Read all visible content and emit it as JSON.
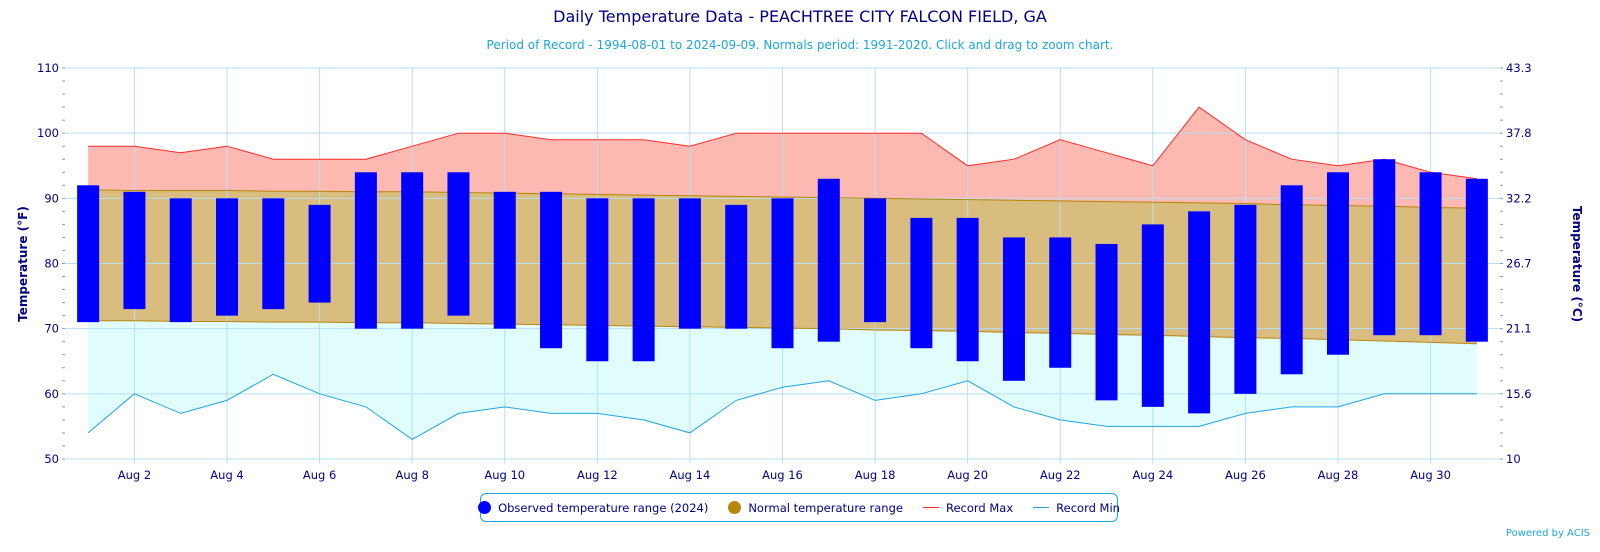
{
  "title": "Daily Temperature Data - PEACHTREE CITY FALCON FIELD, GA",
  "subtitle": "Period of Record - 1994-08-01 to 2024-09-09. Normals period: 1991-2020. Click and drag to zoom chart.",
  "credit": "Powered by ACIS",
  "colors": {
    "observed": "#0000ff",
    "normal_fill": "#d9bd7e",
    "normal_line": "#b8860b",
    "record_max_line": "#ff2a2a",
    "record_max_fill": "#fbb9b2",
    "record_min_line": "#1ea5dd",
    "record_min_fill": "#e0fcfc",
    "grid": "#b7dff2",
    "axis_text": "#000080"
  },
  "legend": {
    "observed": "Observed temperature range (2024)",
    "normal": "Normal temperature range",
    "record_max": "Record Max",
    "record_min": "Record Min",
    "observed_icon": "circle-marker",
    "normal_icon": "circle-marker",
    "record_max_icon": "line-marker",
    "record_min_icon": "line-marker"
  },
  "chart_data": {
    "type": "bar",
    "title": "Daily Temperature Data - PEACHTREE CITY FALCON FIELD, GA",
    "xlabel": "",
    "ylabel": "Temperature (°F)",
    "ylabel_right": "Temperature (°C)",
    "ylim": [
      50,
      110
    ],
    "yticks": [
      50,
      60,
      70,
      80,
      90,
      100,
      110
    ],
    "yticks_right": [
      "10",
      "15.6",
      "21.1",
      "26.7",
      "32.2",
      "37.8",
      "43.3"
    ],
    "xlim": [
      0.5,
      31.5
    ],
    "xticks": [
      2,
      4,
      6,
      8,
      10,
      12,
      14,
      16,
      18,
      20,
      22,
      24,
      26,
      28,
      30
    ],
    "xtick_labels": [
      "Aug 2",
      "Aug 4",
      "Aug 6",
      "Aug 8",
      "Aug 10",
      "Aug 12",
      "Aug 14",
      "Aug 16",
      "Aug 18",
      "Aug 20",
      "Aug 22",
      "Aug 24",
      "Aug 26",
      "Aug 28",
      "Aug 30"
    ],
    "grid": true,
    "legend_position": "bottom-center",
    "days": [
      1,
      2,
      3,
      4,
      5,
      6,
      7,
      8,
      9,
      10,
      11,
      12,
      13,
      14,
      15,
      16,
      17,
      18,
      19,
      20,
      21,
      22,
      23,
      24,
      25,
      26,
      27,
      28,
      29,
      30,
      31
    ],
    "series": [
      {
        "name": "Observed temperature range (2024)",
        "low": [
          71,
          73,
          71,
          72,
          73,
          74,
          70,
          70,
          72,
          70,
          67,
          65,
          65,
          70,
          70,
          67,
          68,
          71,
          67,
          65,
          62,
          64,
          59,
          58,
          57,
          60,
          63,
          66,
          69,
          69,
          68
        ],
        "high": [
          92,
          91,
          90,
          90,
          90,
          89,
          94,
          94,
          94,
          91,
          91,
          90,
          90,
          90,
          89,
          90,
          93,
          90,
          87,
          87,
          84,
          84,
          83,
          86,
          88,
          89,
          92,
          94,
          96,
          94,
          93
        ]
      },
      {
        "name": "Normal temperature range",
        "low": [
          71.2,
          71.2,
          71.1,
          71.1,
          71.0,
          71.0,
          70.9,
          70.9,
          70.8,
          70.7,
          70.6,
          70.5,
          70.4,
          70.3,
          70.2,
          70.1,
          70.0,
          69.8,
          69.7,
          69.6,
          69.4,
          69.3,
          69.1,
          69.0,
          68.8,
          68.6,
          68.5,
          68.3,
          68.1,
          67.9,
          67.7
        ],
        "high": [
          91.3,
          91.2,
          91.2,
          91.2,
          91.1,
          91.1,
          91.0,
          91.0,
          90.9,
          90.8,
          90.7,
          90.6,
          90.5,
          90.4,
          90.3,
          90.2,
          90.1,
          90.0,
          89.9,
          89.8,
          89.7,
          89.6,
          89.5,
          89.4,
          89.3,
          89.2,
          89.0,
          88.9,
          88.8,
          88.6,
          88.5
        ]
      },
      {
        "name": "Record Max",
        "values": [
          98,
          98,
          97,
          98,
          96,
          96,
          96,
          98,
          100,
          100,
          99,
          99,
          99,
          98,
          100,
          100,
          100,
          100,
          100,
          95,
          96,
          99,
          97,
          95,
          104,
          99,
          96,
          95,
          96,
          94,
          93
        ]
      },
      {
        "name": "Record Min",
        "values": [
          54,
          60,
          57,
          59,
          63,
          60,
          58,
          53,
          57,
          58,
          57,
          57,
          56,
          54,
          59,
          61,
          62,
          59,
          60,
          62,
          58,
          56,
          55,
          55,
          55,
          57,
          58,
          58,
          60,
          60,
          60
        ]
      }
    ]
  }
}
